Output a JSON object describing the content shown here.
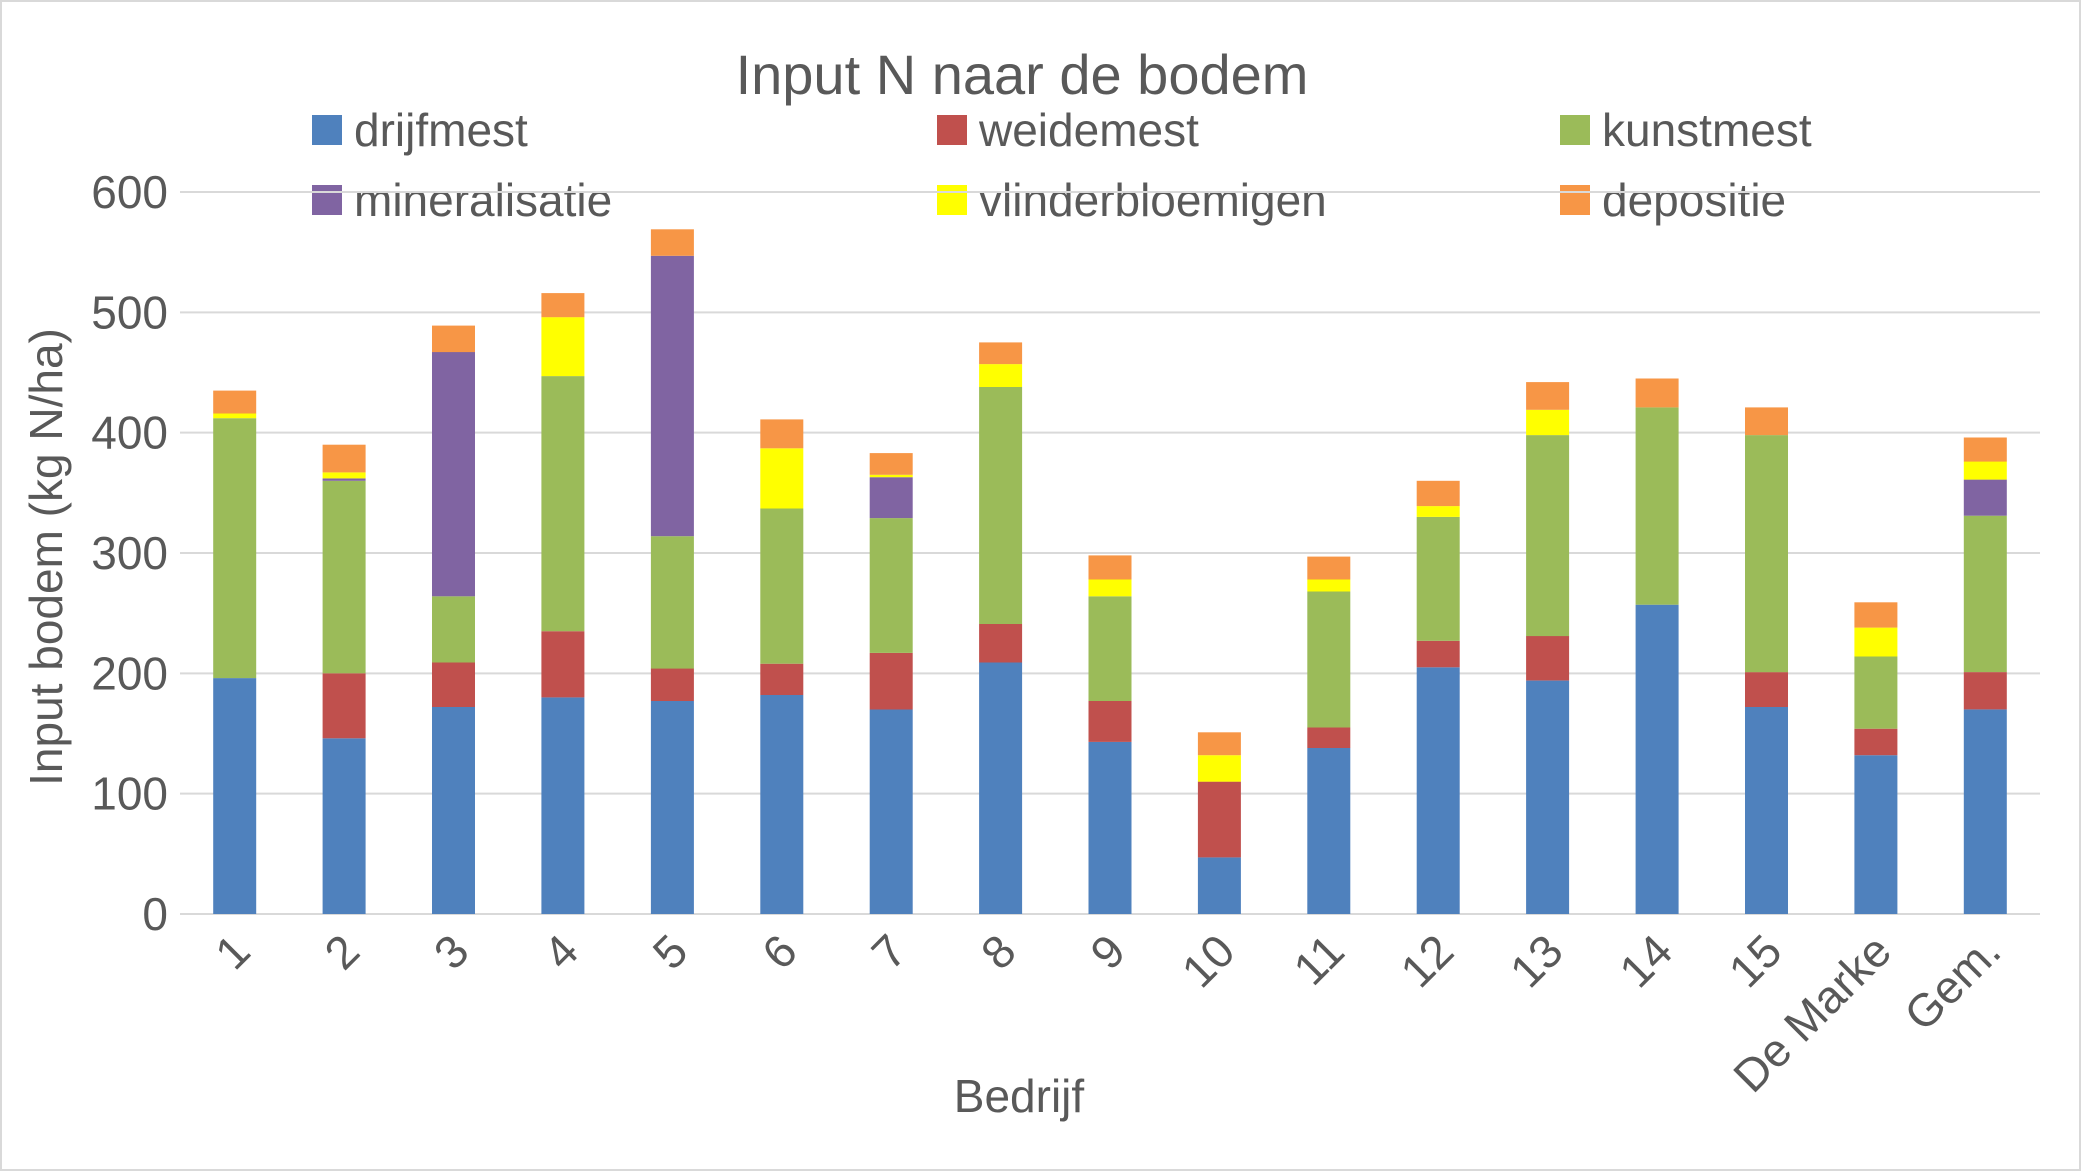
{
  "chart_data": {
    "type": "bar",
    "stacked": true,
    "title": "Input N naar de bodem",
    "xlabel": "Bedrijf",
    "ylabel": "Input bodem (kg N/ha)",
    "ylim": [
      0,
      600
    ],
    "yticks": [
      0,
      100,
      200,
      300,
      400,
      500,
      600
    ],
    "grid": true,
    "legend_position": "top",
    "categories": [
      "1",
      "2",
      "3",
      "4",
      "5",
      "6",
      "7",
      "8",
      "9",
      "10",
      "11",
      "12",
      "13",
      "14",
      "15",
      "De Marke",
      "Gem."
    ],
    "series": [
      {
        "name": "drijfmest",
        "color": "#4f81bd",
        "values": [
          196,
          146,
          172,
          180,
          177,
          182,
          170,
          209,
          143,
          47,
          138,
          205,
          194,
          257,
          172,
          132,
          170
        ]
      },
      {
        "name": "weidemest",
        "color": "#c0504d",
        "values": [
          0,
          54,
          37,
          55,
          27,
          26,
          47,
          32,
          34,
          63,
          17,
          22,
          37,
          0,
          29,
          22,
          31
        ]
      },
      {
        "name": "kunstmest",
        "color": "#9bbb59",
        "values": [
          216,
          160,
          55,
          212,
          110,
          129,
          112,
          197,
          87,
          0,
          113,
          103,
          167,
          164,
          197,
          60,
          130
        ]
      },
      {
        "name": "mineralisatie",
        "color": "#8064a2",
        "values": [
          0,
          2,
          203,
          0,
          233,
          0,
          34,
          0,
          0,
          0,
          0,
          0,
          0,
          0,
          0,
          0,
          30
        ]
      },
      {
        "name": "vlinderbloemigen",
        "color": "#ffff00",
        "values": [
          4,
          5,
          0,
          49,
          0,
          50,
          2,
          19,
          14,
          22,
          10,
          9,
          21,
          0,
          0,
          24,
          15
        ]
      },
      {
        "name": "depositie",
        "color": "#f79646",
        "values": [
          19,
          23,
          22,
          20,
          22,
          24,
          18,
          18,
          20,
          19,
          19,
          21,
          23,
          24,
          23,
          21,
          20
        ]
      }
    ]
  }
}
